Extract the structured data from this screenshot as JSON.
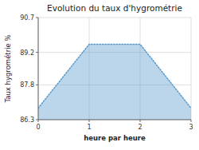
{
  "chart_data": {
    "type": "area",
    "title": "Evolution du taux d'hygrométrie",
    "xlabel": "heure par heure",
    "ylabel": "Taux hygrométrie %",
    "x": [
      0,
      1,
      2,
      3
    ],
    "y": [
      86.8,
      89.55,
      89.55,
      86.8
    ],
    "color": "#5599cc",
    "line_style": "dotted",
    "xlim": [
      0,
      3
    ],
    "ylim": [
      86.3,
      90.7
    ],
    "xticks": [
      0,
      1,
      2,
      3
    ],
    "yticks": [
      86.3,
      87.8,
      89.2,
      90.7
    ],
    "grid": true
  }
}
